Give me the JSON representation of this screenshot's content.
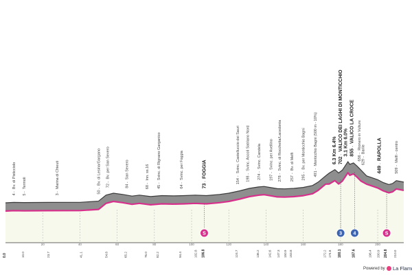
{
  "colors": {
    "terrain_fill": "#8e8e8e",
    "terrain_dark": "#3a3a3a",
    "valley_fill": "#f7f9ec",
    "route_line": "#d7308c",
    "sprint_badge": "#d7308c",
    "kom_badge": "#3d64b0",
    "axis_text": "#444444"
  },
  "chart_data": {
    "type": "area",
    "xlabel": "",
    "ylabel": "",
    "xlim": [
      0,
      214
    ],
    "ylim": [
      0,
      900
    ],
    "profile_x": [
      0,
      4.4,
      10,
      23,
      40,
      50,
      54,
      58,
      63,
      68,
      72,
      78,
      84,
      90,
      96,
      102,
      108,
      115,
      120,
      126,
      131,
      136,
      139,
      142,
      146,
      150,
      155,
      160,
      165,
      168,
      172,
      174,
      177,
      179,
      181,
      184,
      185,
      187,
      189,
      191,
      194,
      197,
      200,
      203,
      206,
      208,
      210,
      214
    ],
    "profile_y": [
      0,
      8,
      6,
      8,
      10,
      35,
      160,
      200,
      175,
      140,
      160,
      130,
      150,
      145,
      150,
      160,
      150,
      175,
      200,
      250,
      300,
      330,
      340,
      320,
      295,
      290,
      300,
      320,
      360,
      430,
      560,
      620,
      690,
      620,
      680,
      855,
      800,
      830,
      760,
      680,
      560,
      520,
      480,
      420,
      380,
      400,
      460,
      430
    ],
    "waypoints": [
      {
        "km": 4.4,
        "name": "Bv. di Pisticciolo",
        "alt": "4"
      },
      {
        "km": 10.0,
        "name": "Termoli",
        "alt": "5"
      },
      {
        "km": 27.7,
        "name": "Marina di Chieuti",
        "alt": "3"
      },
      {
        "km": 50.0,
        "name": "Bv. di Lesina/Gargano",
        "alt": "50"
      },
      {
        "km": 54.8,
        "name": "Bv. per San Severo",
        "alt": "72"
      },
      {
        "km": 65.2,
        "name": "San Severo",
        "alt": "84"
      },
      {
        "km": 76.0,
        "name": "Inn. ss.16",
        "alt": "68"
      },
      {
        "km": 82.2,
        "name": "Svinc. di Rignano Garganico",
        "alt": "45"
      },
      {
        "km": 94.4,
        "name": "Svinc. per Foggia",
        "alt": "64"
      },
      {
        "km": 106.8,
        "name": "FOGGIA",
        "alt": "73",
        "major": true
      },
      {
        "km": 124.7,
        "name": "Svinc. Castelluccio dei Sauri",
        "alt": "154"
      },
      {
        "km": 130.0,
        "name": "Svinc. Ascoli Satriano Nord",
        "alt": "198"
      },
      {
        "km": 136.2,
        "name": "Svinc. Candela",
        "alt": "274"
      },
      {
        "km": 142.6,
        "name": "Svinc. per Avellino",
        "alt": "197"
      },
      {
        "km": 147.3,
        "name": "Svinc. di Rocchetta/Lacedonia",
        "alt": "278"
      },
      {
        "km": 153.8,
        "name": "Bv. di Melfi",
        "alt": "257"
      },
      {
        "km": 160.0,
        "name": "Bv. per Monticchio Bagni",
        "alt": "295"
      },
      {
        "km": 166.4,
        "name": "Monticchio Bagni (500 m - 10%)",
        "alt": "491"
      },
      {
        "km": 180.1,
        "name": "VALICO DEI LAGHI DI MONTICCHIO",
        "alt": "702",
        "major": true
      },
      {
        "km": 186.2,
        "name": "VALICO LA CROCE",
        "alt": "855",
        "major": true
      },
      {
        "km": 190.0,
        "name": "Rionero in Vulture",
        "alt": "656"
      },
      {
        "km": 192.0,
        "name": "Barile",
        "alt": "629"
      },
      {
        "km": 200.9,
        "name": "RAPOLLA",
        "alt": "449",
        "major": true
      },
      {
        "km": 210.0,
        "name": "Melfi - centro",
        "alt": "509"
      }
    ],
    "climb_details": [
      {
        "text": "6.3 Km 6.4%"
      },
      {
        "text": "3.1 Km 6.0%"
      }
    ],
    "km_ticks": [
      "20",
      "40",
      "60",
      "80",
      "100",
      "120",
      "140",
      "160",
      "180",
      "200"
    ],
    "km_markers": [
      "0.0",
      "10.0",
      "23.7",
      "41.1",
      "54.8",
      "65.2",
      "76.0",
      "82.2",
      "94.4",
      "102.8",
      "106.8",
      "124.7",
      "136.2",
      "142.6",
      "147.3",
      "150.9",
      "153.8",
      "172.2",
      "174.8",
      "180.1",
      "187.6",
      "196.4",
      "200.9",
      "204.8",
      "210.0"
    ],
    "major_km_markers": [
      "0.0",
      "106.8",
      "180.1",
      "187.6",
      "204.8"
    ],
    "badges": [
      {
        "km": 106.8,
        "type": "sprint",
        "label": "S"
      },
      {
        "km": 180.1,
        "type": "kom",
        "label": "3"
      },
      {
        "km": 187.6,
        "type": "kom",
        "label": "4"
      },
      {
        "km": 204.8,
        "type": "sprint",
        "label": "S"
      }
    ]
  },
  "footer": {
    "powered_by": "Powered by",
    "brand": "La Flamme"
  }
}
